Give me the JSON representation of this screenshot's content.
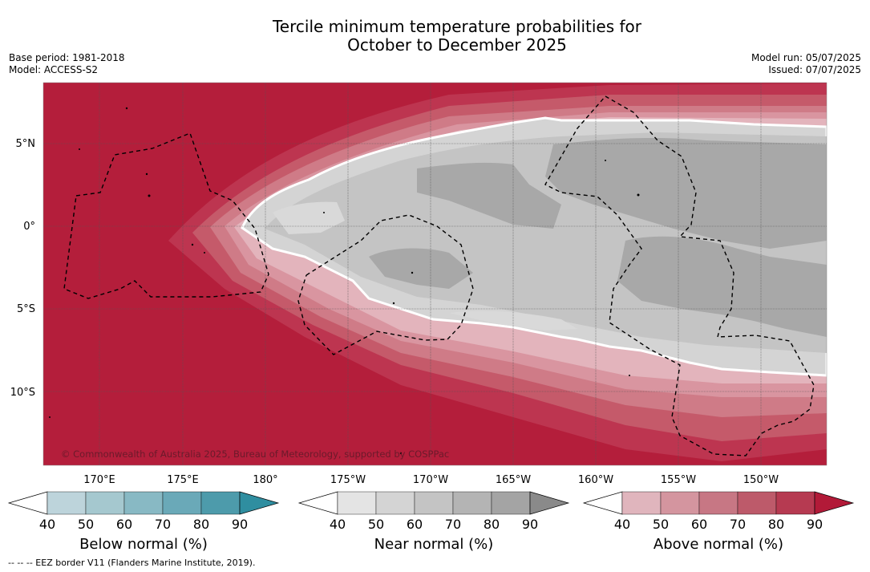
{
  "title": {
    "line1": "Tercile minimum temperature probabilities for",
    "line2": "October to December 2025"
  },
  "meta": {
    "base_period": "Base period: 1981-2018",
    "model": "Model: ACCESS-S2",
    "model_run": "Model run: 05/07/2025",
    "issued": "Issued: 07/07/2025"
  },
  "map": {
    "copyright": "© Commonwealth of Australia 2025, Bureau of Meteorology, supported by COSPPac",
    "lat_labels": [
      "5°N",
      "0°",
      "5°S",
      "10°S"
    ],
    "lon_labels": [
      "170°E",
      "175°E",
      "180°",
      "175°W",
      "170°W",
      "165°W",
      "160°W",
      "155°W",
      "150°W"
    ],
    "background_color": "#b41e3b"
  },
  "colorbars": [
    {
      "label": "Below normal (%)",
      "ticks": [
        "40",
        "50",
        "60",
        "70",
        "80",
        "90"
      ],
      "colors": [
        "#ffffff",
        "#bdd4db",
        "#a5c8cf",
        "#88b9c4",
        "#6aa9b8",
        "#4d9bab",
        "#2f8ea0"
      ]
    },
    {
      "label": "Near normal (%)",
      "ticks": [
        "40",
        "50",
        "60",
        "70",
        "80",
        "90"
      ],
      "colors": [
        "#ffffff",
        "#e4e4e4",
        "#d4d4d4",
        "#c4c4c4",
        "#b4b4b4",
        "#a4a4a4",
        "#8a8a8a"
      ]
    },
    {
      "label": "Above normal (%)",
      "ticks": [
        "40",
        "50",
        "60",
        "70",
        "80",
        "90"
      ],
      "colors": [
        "#ffffff",
        "#e0b5bd",
        "#d4959f",
        "#c77784",
        "#bd5a6a",
        "#b63a51",
        "#b21a38"
      ]
    }
  ],
  "footnote": "--  --  -- EEZ border V11 (Flanders Marine Institute, 2019)."
}
